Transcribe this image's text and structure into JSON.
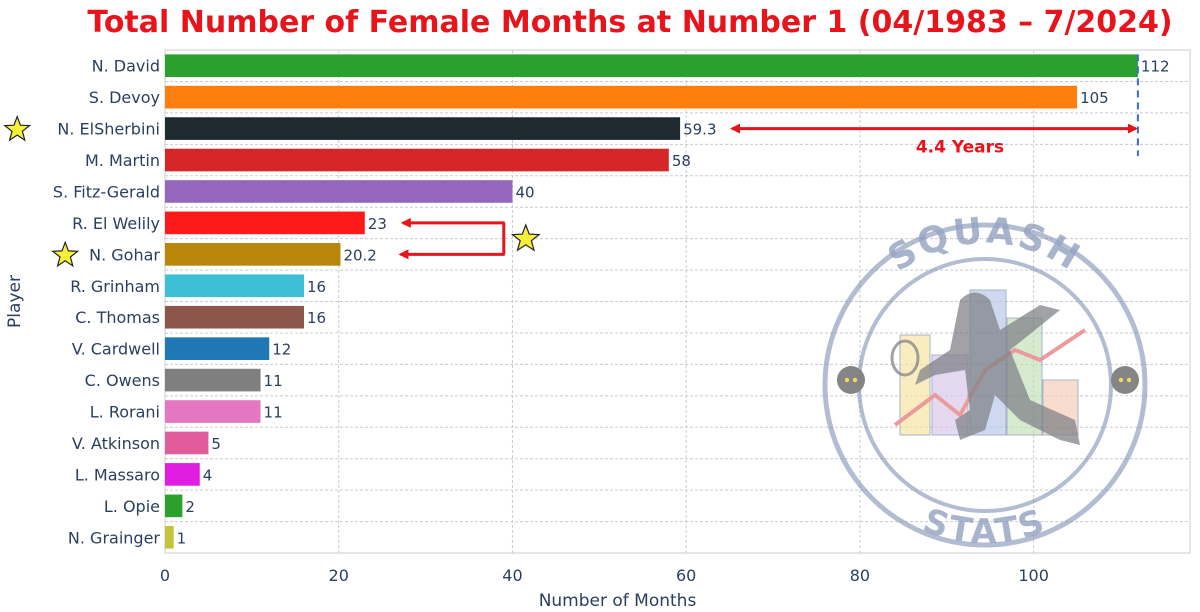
{
  "chart_data": {
    "type": "bar",
    "orientation": "horizontal",
    "title": "Total Number of Female Months at Number 1 (04/1983 – 7/2024)",
    "xlabel": "Number of Months",
    "ylabel": "Player",
    "xlim": [
      0,
      118
    ],
    "xticks": [
      0,
      20,
      40,
      60,
      80,
      100
    ],
    "grid": true,
    "categories": [
      "N. David",
      "S. Devoy",
      "N. ElSherbini",
      "M. Martin",
      "S. Fitz-Gerald",
      "R. El Welily",
      "N. Gohar",
      "R. Grinham",
      "C. Thomas",
      "V. Cardwell",
      "C. Owens",
      "L. Rorani",
      "V. Atkinson",
      "L. Massaro",
      "L. Opie",
      "N. Grainger"
    ],
    "values": [
      112,
      105,
      59.3,
      58,
      40,
      23,
      20.2,
      16,
      16,
      12,
      11,
      11,
      5,
      4,
      2,
      1
    ],
    "value_labels": [
      "112",
      "105",
      "59.3",
      "58",
      "40",
      "23",
      "20.2",
      "16",
      "16",
      "12",
      "11",
      "11",
      "5",
      "4",
      "2",
      "1"
    ],
    "colors": [
      "#2ca02c",
      "#ff7f0e",
      "#1f2a30",
      "#d62728",
      "#9467bd",
      "#ff1a1a",
      "#b8860b",
      "#3dbfd4",
      "#8c564b",
      "#1f77b4",
      "#7f7f7f",
      "#e377c2",
      "#e05c9a",
      "#e11de1",
      "#2ca02c",
      "#c4c43a"
    ],
    "starred": [
      "N. ElSherbini",
      "N. Gohar"
    ],
    "annotations": [
      {
        "text": "4.4 Years",
        "from_value": 59.3,
        "to_value": 112,
        "category": "N. ElSherbini"
      }
    ]
  },
  "watermark": {
    "top_text": "SQUASH",
    "bottom_text": "STATS",
    "color": "#7f92b5"
  },
  "colors": {
    "title": "#e8141c",
    "annotation": "#e8141c",
    "axis_text": "#2a3f5f",
    "grid": "#c8ccd2",
    "star_fill": "#f7f03a"
  }
}
